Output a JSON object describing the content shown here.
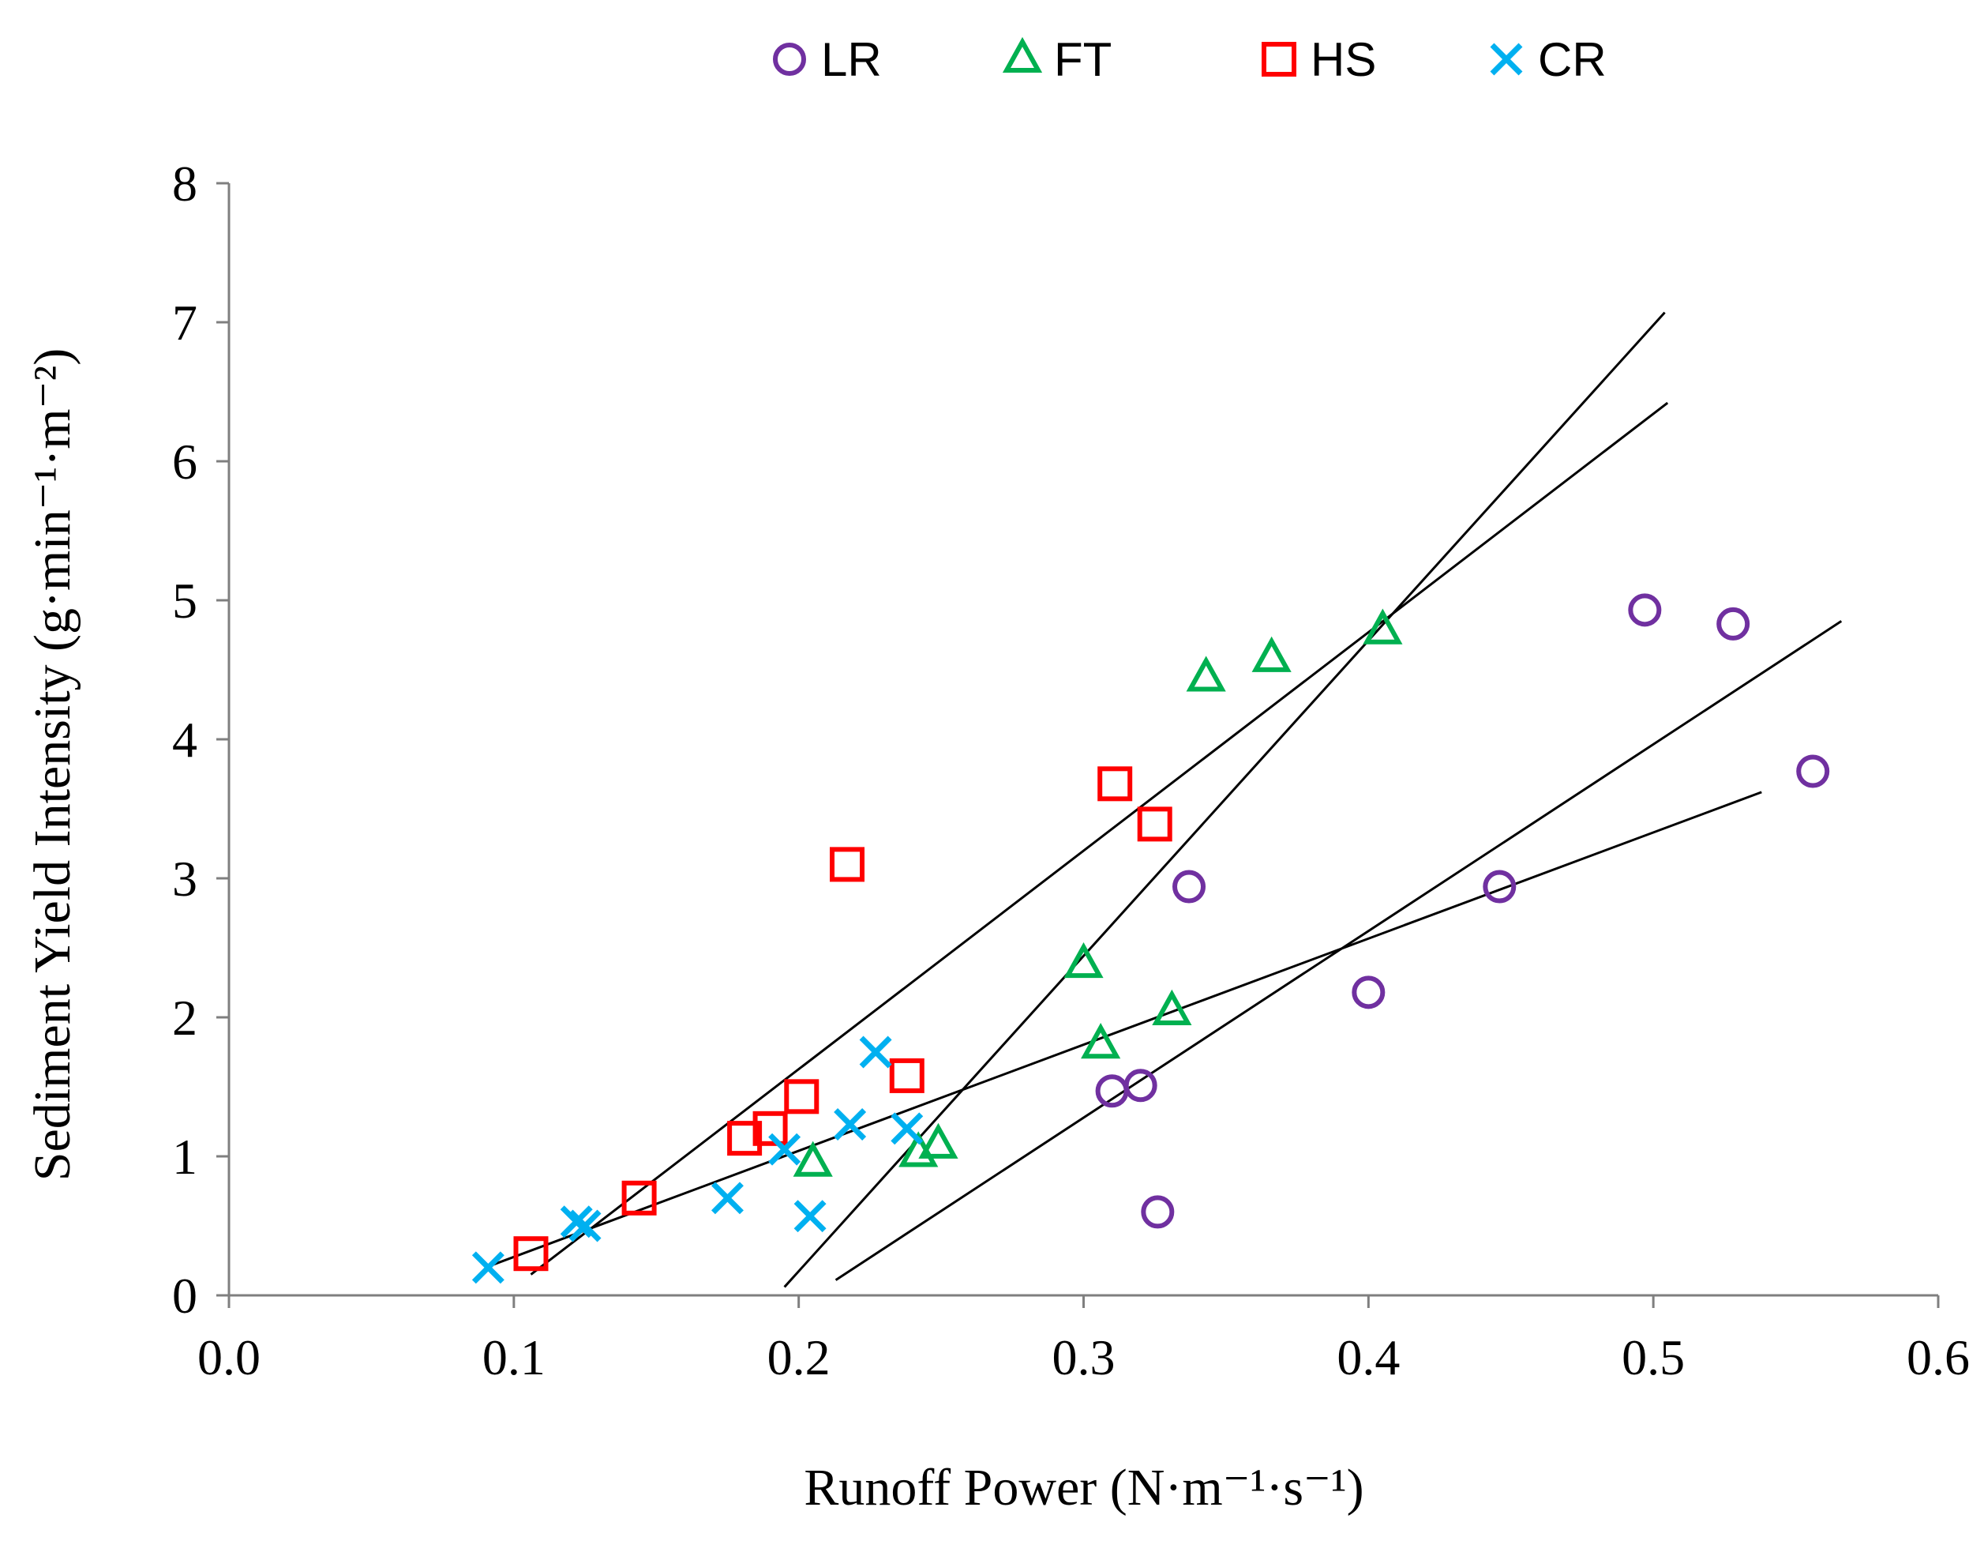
{
  "chart_data": {
    "type": "scatter",
    "title": "",
    "xlabel": "Runoff Power (N·m⁻¹·s⁻¹)",
    "ylabel": "Sediment Yield Intensity (g·min⁻¹·m⁻²)",
    "xlim": [
      0,
      0.6
    ],
    "ylim": [
      0,
      8
    ],
    "x_ticks": [
      "0.0",
      "0.1",
      "0.2",
      "0.3",
      "0.4",
      "0.5",
      "0.6"
    ],
    "y_ticks": [
      "0",
      "1",
      "2",
      "3",
      "4",
      "5",
      "6",
      "7",
      "8"
    ],
    "grid": false,
    "legend_position": "top",
    "series": [
      {
        "name": "LR",
        "marker": "circle",
        "color": "#7030A0",
        "points": [
          [
            0.31,
            1.47
          ],
          [
            0.32,
            1.51
          ],
          [
            0.326,
            0.6
          ],
          [
            0.337,
            2.94
          ],
          [
            0.4,
            2.18
          ],
          [
            0.446,
            2.94
          ],
          [
            0.497,
            4.93
          ],
          [
            0.528,
            4.83
          ],
          [
            0.556,
            3.77
          ]
        ]
      },
      {
        "name": "FT",
        "marker": "triangle",
        "color": "#00B050",
        "points": [
          [
            0.205,
            0.95
          ],
          [
            0.242,
            1.02
          ],
          [
            0.249,
            1.08
          ],
          [
            0.3,
            2.38
          ],
          [
            0.306,
            1.8
          ],
          [
            0.331,
            2.04
          ],
          [
            0.343,
            4.44
          ],
          [
            0.366,
            4.58
          ],
          [
            0.405,
            4.78
          ]
        ]
      },
      {
        "name": "HS",
        "marker": "square",
        "color": "#FF0000",
        "points": [
          [
            0.106,
            0.3
          ],
          [
            0.144,
            0.7
          ],
          [
            0.181,
            1.13
          ],
          [
            0.19,
            1.2
          ],
          [
            0.201,
            1.43
          ],
          [
            0.217,
            3.1
          ],
          [
            0.238,
            1.58
          ],
          [
            0.311,
            3.68
          ],
          [
            0.325,
            3.39
          ]
        ]
      },
      {
        "name": "CR",
        "marker": "x",
        "color": "#00B0F0",
        "points": [
          [
            0.091,
            0.2
          ],
          [
            0.122,
            0.53
          ],
          [
            0.125,
            0.5
          ],
          [
            0.175,
            0.7
          ],
          [
            0.195,
            1.05
          ],
          [
            0.204,
            0.57
          ],
          [
            0.218,
            1.23
          ],
          [
            0.227,
            1.75
          ],
          [
            0.238,
            1.2
          ]
        ]
      }
    ],
    "trendlines": [
      {
        "x": [
          0.09,
          0.538
        ],
        "y": [
          0.2,
          3.62
        ]
      },
      {
        "x": [
          0.106,
          0.505
        ],
        "y": [
          0.15,
          6.42
        ]
      },
      {
        "x": [
          0.195,
          0.504
        ],
        "y": [
          0.06,
          7.07
        ]
      },
      {
        "x": [
          0.213,
          0.566
        ],
        "y": [
          0.11,
          4.85
        ]
      }
    ]
  }
}
